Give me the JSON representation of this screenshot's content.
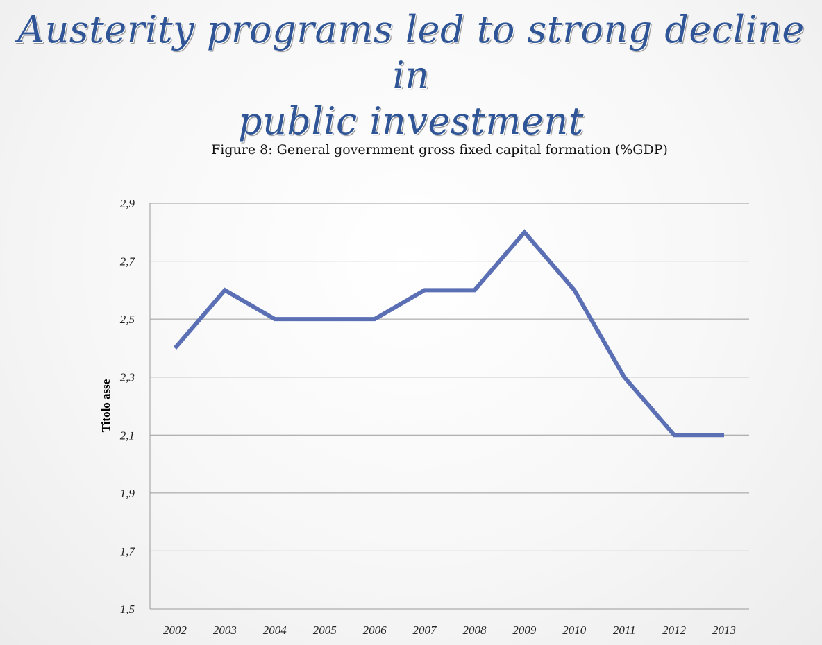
{
  "slide": {
    "title_line1": "Austerity programs led to strong decline in",
    "title_line2": "public investment"
  },
  "colors": {
    "title": "#2f5597",
    "series": "#5b6fb5",
    "gridline": "#9a9a9a"
  },
  "chart_data": {
    "type": "line",
    "title": "Figure 8: General government gross fixed capital  formation (%GDP)",
    "ylabel": "Titolo asse",
    "xlabel": "",
    "x": [
      "2002",
      "2003",
      "2004",
      "2005",
      "2006",
      "2007",
      "2008",
      "2009",
      "2010",
      "2011",
      "2012",
      "2013"
    ],
    "series": [
      {
        "values": [
          2.4,
          2.6,
          2.5,
          2.5,
          2.5,
          2.6,
          2.6,
          2.8,
          2.6,
          2.3,
          2.1,
          2.1
        ]
      }
    ],
    "ylim": [
      1.5,
      2.9
    ],
    "yticks": [
      1.5,
      1.7,
      1.9,
      2.1,
      2.3,
      2.5,
      2.7,
      2.9
    ],
    "ytick_labels": [
      "1,5",
      "1,7",
      "1,9",
      "2,1",
      "2,3",
      "2,5",
      "2,7",
      "2,9"
    ],
    "grid": "horizontal",
    "legend": "none"
  }
}
